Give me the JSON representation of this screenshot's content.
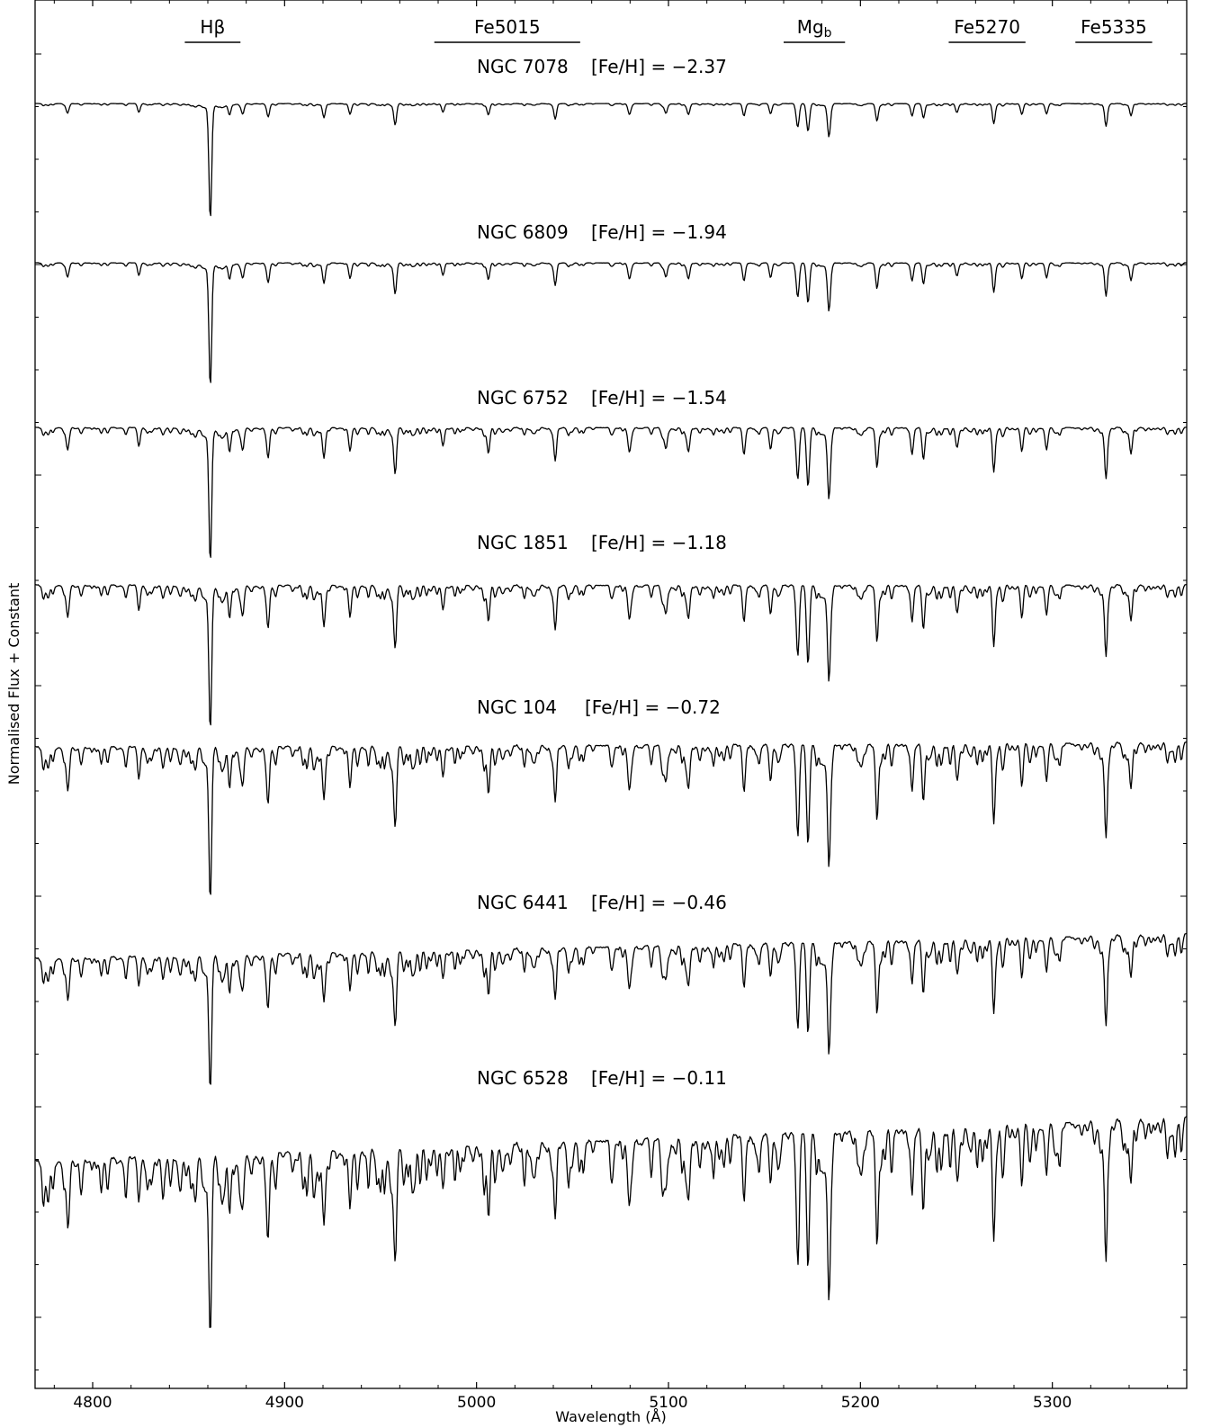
{
  "chart_data": {
    "type": "line",
    "title": "",
    "xlabel": "Wavelength (Å)",
    "ylabel": "Normalised Flux + Constant",
    "xlim": [
      4770,
      5370
    ],
    "x_ticks": [
      4800,
      4900,
      5000,
      5100,
      5200,
      5300
    ],
    "y_tick_labels": "none",
    "grid": false,
    "legend": "none",
    "line_color": "#000000",
    "index_bands": [
      {
        "name": "Hβ",
        "sub": "",
        "range": [
          4848,
          4877
        ]
      },
      {
        "name": "Fe5015",
        "sub": "",
        "range": [
          4978,
          5054
        ]
      },
      {
        "name": "Mg",
        "sub": "b",
        "range": [
          5160,
          5192
        ]
      },
      {
        "name": "Fe5270",
        "sub": "",
        "range": [
          5246,
          5286
        ]
      },
      {
        "name": "Fe5335",
        "sub": "",
        "range": [
          5312,
          5352
        ]
      }
    ],
    "absorption_lines": [
      {
        "wavelength": 4861.3,
        "strength": 1.0,
        "width": 1.0
      },
      {
        "wavelength": 4957.6,
        "strength": 0.6,
        "width": 1.0
      },
      {
        "wavelength": 5167.3,
        "strength": 0.65,
        "width": 1.1
      },
      {
        "wavelength": 5172.7,
        "strength": 0.8,
        "width": 1.1
      },
      {
        "wavelength": 5183.6,
        "strength": 0.95,
        "width": 1.1
      },
      {
        "wavelength": 5269.5,
        "strength": 0.55,
        "width": 1.0
      },
      {
        "wavelength": 5328.0,
        "strength": 0.6,
        "width": 1.0
      },
      {
        "wavelength": 5226.9,
        "strength": 0.35,
        "width": 1.0
      },
      {
        "wavelength": 4920.5,
        "strength": 0.4,
        "width": 1.0
      },
      {
        "wavelength": 4891.5,
        "strength": 0.35,
        "width": 1.0
      },
      {
        "wavelength": 4934.1,
        "strength": 0.3,
        "width": 1.0
      },
      {
        "wavelength": 5041.0,
        "strength": 0.45,
        "width": 1.0
      },
      {
        "wavelength": 5006.1,
        "strength": 0.3,
        "width": 1.0
      },
      {
        "wavelength": 4982.5,
        "strength": 0.25,
        "width": 1.0
      },
      {
        "wavelength": 5139.3,
        "strength": 0.35,
        "width": 1.0
      },
      {
        "wavelength": 5110.4,
        "strength": 0.3,
        "width": 1.0
      },
      {
        "wavelength": 5232.9,
        "strength": 0.4,
        "width": 1.0
      },
      {
        "wavelength": 5208.6,
        "strength": 0.45,
        "width": 1.0
      },
      {
        "wavelength": 5284.1,
        "strength": 0.3,
        "width": 1.0
      },
      {
        "wavelength": 5341.0,
        "strength": 0.35,
        "width": 1.0
      },
      {
        "wavelength": 5250.2,
        "strength": 0.25,
        "width": 1.0
      },
      {
        "wavelength": 5297.0,
        "strength": 0.3,
        "width": 1.0
      },
      {
        "wavelength": 4871.3,
        "strength": 0.3,
        "width": 1.0
      },
      {
        "wavelength": 4878.2,
        "strength": 0.3,
        "width": 1.0
      },
      {
        "wavelength": 4824.1,
        "strength": 0.25,
        "width": 1.0
      },
      {
        "wavelength": 4786.8,
        "strength": 0.25,
        "width": 1.0
      },
      {
        "wavelength": 5079.7,
        "strength": 0.3,
        "width": 1.0
      },
      {
        "wavelength": 5098.7,
        "strength": 0.28,
        "width": 1.0
      },
      {
        "wavelength": 5153.2,
        "strength": 0.3,
        "width": 1.0
      }
    ],
    "series": [
      {
        "name": "NGC 7078",
        "feh_label": "[Fe/H] = −2.37",
        "feh": -2.37,
        "depth_scale": 0.25,
        "slope": 0.0,
        "noise": 0.06
      },
      {
        "name": "NGC 6809",
        "feh_label": "[Fe/H] = −1.94",
        "feh": -1.94,
        "depth_scale": 0.35,
        "slope": 0.0,
        "noise": 0.1
      },
      {
        "name": "NGC 6752",
        "feh_label": "[Fe/H] = −1.54",
        "feh": -1.54,
        "depth_scale": 0.5,
        "slope": 0.0,
        "noise": 0.2
      },
      {
        "name": "NGC 1851",
        "feh_label": "[Fe/H] = −1.18",
        "feh": -1.18,
        "depth_scale": 0.65,
        "slope": 0.0,
        "noise": 0.35
      },
      {
        "name": "NGC 104",
        "feh_label": "[Fe/H] = −0.72",
        "feh": -0.72,
        "depth_scale": 0.8,
        "slope": 0.08,
        "noise": 0.55
      },
      {
        "name": "NGC 6441",
        "feh_label": "[Fe/H] = −0.46",
        "feh": -0.46,
        "depth_scale": 0.85,
        "slope": 0.45,
        "noise": 0.7
      },
      {
        "name": "NGC 6528",
        "feh_label": "[Fe/H] = −0.11",
        "feh": -0.11,
        "depth_scale": 1.0,
        "slope": 0.8,
        "noise": 1.0
      }
    ]
  }
}
